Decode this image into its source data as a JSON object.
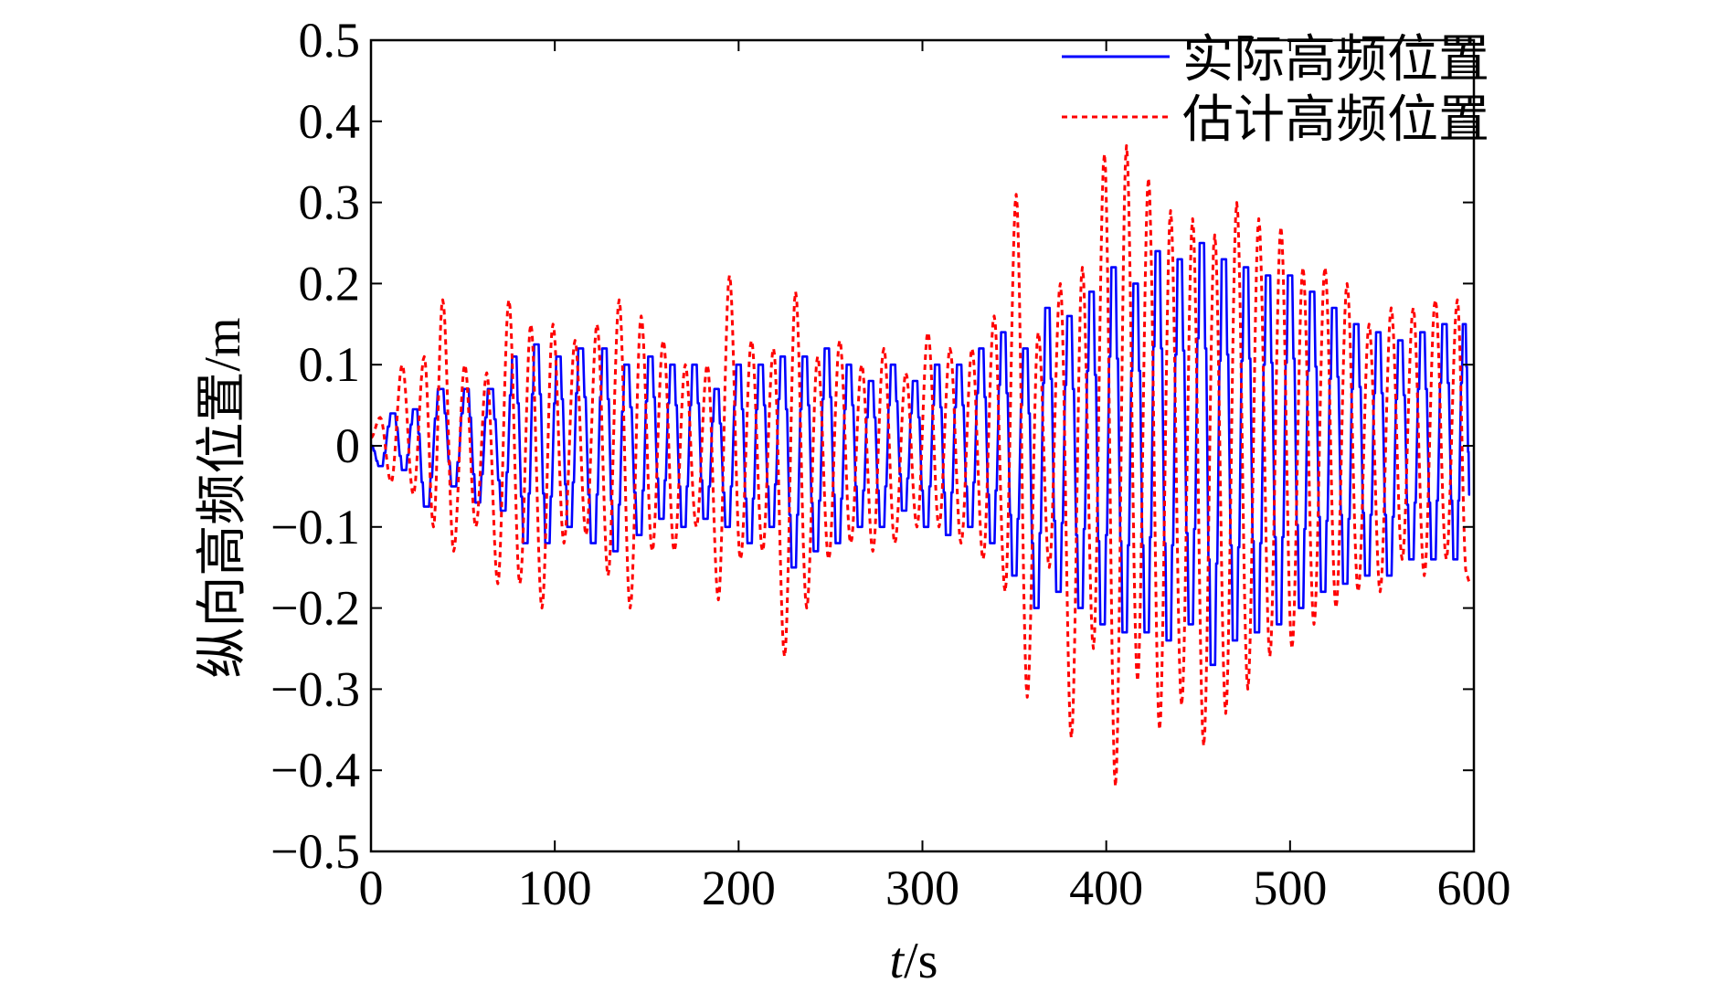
{
  "chart_data": {
    "type": "line",
    "title": "",
    "xlabel_italic": "t",
    "xlabel_unit": "/s",
    "ylabel": "纵向高频位置/m",
    "xlim": [
      0,
      600
    ],
    "ylim": [
      -0.5,
      0.5
    ],
    "xticks": [
      0,
      100,
      200,
      300,
      400,
      500,
      600
    ],
    "xtick_labels": [
      "0",
      "100",
      "200",
      "300",
      "400",
      "500",
      "600"
    ],
    "yticks": [
      0.5,
      0.4,
      0.3,
      0.2,
      0.1,
      0,
      -0.1,
      -0.2,
      -0.3,
      -0.4,
      -0.5
    ],
    "ytick_labels": [
      "0.5",
      "0.4",
      "0.3",
      "0.2",
      "0.1",
      "0",
      "−0.1",
      "−0.2",
      "−0.3",
      "−0.4",
      "−0.5"
    ],
    "legend_position": "top-right",
    "series": [
      {
        "name": "实际高频位置",
        "color": "#0000ff",
        "style": "solid",
        "peaks": [
          [
            0,
            0
          ],
          [
            5,
            -0.025
          ],
          [
            12,
            0.04
          ],
          [
            18,
            -0.03
          ],
          [
            24,
            0.045
          ],
          [
            30,
            -0.075
          ],
          [
            38,
            0.07
          ],
          [
            45,
            -0.05
          ],
          [
            52,
            0.07
          ],
          [
            58,
            -0.07
          ],
          [
            65,
            0.07
          ],
          [
            72,
            -0.08
          ],
          [
            78,
            0.11
          ],
          [
            84,
            -0.12
          ],
          [
            90,
            0.125
          ],
          [
            96,
            -0.12
          ],
          [
            102,
            0.11
          ],
          [
            108,
            -0.1
          ],
          [
            114,
            0.12
          ],
          [
            121,
            -0.12
          ],
          [
            127,
            0.12
          ],
          [
            133,
            -0.13
          ],
          [
            139,
            0.1
          ],
          [
            146,
            -0.11
          ],
          [
            152,
            0.11
          ],
          [
            158,
            -0.09
          ],
          [
            164,
            0.1
          ],
          [
            170,
            -0.1
          ],
          [
            176,
            0.1
          ],
          [
            182,
            -0.09
          ],
          [
            188,
            0.07
          ],
          [
            194,
            -0.1
          ],
          [
            200,
            0.1
          ],
          [
            206,
            -0.12
          ],
          [
            212,
            0.1
          ],
          [
            218,
            -0.1
          ],
          [
            224,
            0.11
          ],
          [
            230,
            -0.15
          ],
          [
            236,
            0.11
          ],
          [
            242,
            -0.13
          ],
          [
            248,
            0.12
          ],
          [
            254,
            -0.12
          ],
          [
            260,
            0.1
          ],
          [
            266,
            -0.1
          ],
          [
            272,
            0.08
          ],
          [
            278,
            -0.1
          ],
          [
            284,
            0.1
          ],
          [
            290,
            -0.08
          ],
          [
            296,
            0.08
          ],
          [
            302,
            -0.1
          ],
          [
            308,
            0.1
          ],
          [
            314,
            -0.11
          ],
          [
            320,
            0.1
          ],
          [
            326,
            -0.1
          ],
          [
            332,
            0.12
          ],
          [
            338,
            -0.12
          ],
          [
            344,
            0.14
          ],
          [
            350,
            -0.16
          ],
          [
            356,
            0.12
          ],
          [
            362,
            -0.2
          ],
          [
            368,
            0.17
          ],
          [
            374,
            -0.18
          ],
          [
            380,
            0.16
          ],
          [
            386,
            -0.2
          ],
          [
            392,
            0.19
          ],
          [
            398,
            -0.22
          ],
          [
            404,
            0.22
          ],
          [
            410,
            -0.23
          ],
          [
            416,
            0.2
          ],
          [
            422,
            -0.23
          ],
          [
            428,
            0.24
          ],
          [
            434,
            -0.24
          ],
          [
            440,
            0.23
          ],
          [
            446,
            -0.22
          ],
          [
            452,
            0.25
          ],
          [
            458,
            -0.27
          ],
          [
            464,
            0.23
          ],
          [
            470,
            -0.24
          ],
          [
            476,
            0.22
          ],
          [
            482,
            -0.23
          ],
          [
            488,
            0.21
          ],
          [
            494,
            -0.22
          ],
          [
            500,
            0.21
          ],
          [
            506,
            -0.2
          ],
          [
            512,
            0.19
          ],
          [
            518,
            -0.18
          ],
          [
            524,
            0.17
          ],
          [
            530,
            -0.17
          ],
          [
            536,
            0.15
          ],
          [
            542,
            -0.16
          ],
          [
            548,
            0.14
          ],
          [
            554,
            -0.16
          ],
          [
            560,
            0.13
          ],
          [
            566,
            -0.14
          ],
          [
            572,
            0.14
          ],
          [
            578,
            -0.14
          ],
          [
            584,
            0.15
          ],
          [
            590,
            -0.14
          ],
          [
            595,
            0.15
          ],
          [
            598,
            -0.06
          ]
        ]
      },
      {
        "name": "估计高频位置",
        "color": "#ff0000",
        "style": "dashed",
        "peaks": [
          [
            0,
            0.01
          ],
          [
            5,
            0.035
          ],
          [
            11,
            -0.045
          ],
          [
            17,
            0.1
          ],
          [
            23,
            -0.06
          ],
          [
            29,
            0.11
          ],
          [
            34,
            -0.1
          ],
          [
            39,
            0.18
          ],
          [
            45,
            -0.13
          ],
          [
            51,
            0.1
          ],
          [
            57,
            -0.1
          ],
          [
            63,
            0.09
          ],
          [
            69,
            -0.17
          ],
          [
            75,
            0.18
          ],
          [
            81,
            -0.17
          ],
          [
            87,
            0.15
          ],
          [
            93,
            -0.2
          ],
          [
            99,
            0.15
          ],
          [
            105,
            -0.12
          ],
          [
            111,
            0.13
          ],
          [
            117,
            -0.11
          ],
          [
            123,
            0.15
          ],
          [
            129,
            -0.16
          ],
          [
            135,
            0.18
          ],
          [
            141,
            -0.2
          ],
          [
            147,
            0.16
          ],
          [
            153,
            -0.13
          ],
          [
            159,
            0.13
          ],
          [
            165,
            -0.13
          ],
          [
            171,
            0.1
          ],
          [
            177,
            -0.1
          ],
          [
            183,
            0.1
          ],
          [
            189,
            -0.19
          ],
          [
            195,
            0.21
          ],
          [
            201,
            -0.14
          ],
          [
            207,
            0.13
          ],
          [
            213,
            -0.13
          ],
          [
            219,
            0.12
          ],
          [
            225,
            -0.26
          ],
          [
            231,
            0.19
          ],
          [
            237,
            -0.2
          ],
          [
            243,
            0.11
          ],
          [
            249,
            -0.14
          ],
          [
            255,
            0.13
          ],
          [
            261,
            -0.12
          ],
          [
            267,
            0.1
          ],
          [
            273,
            -0.13
          ],
          [
            279,
            0.12
          ],
          [
            285,
            -0.12
          ],
          [
            291,
            0.09
          ],
          [
            297,
            -0.1
          ],
          [
            303,
            0.14
          ],
          [
            309,
            -0.1
          ],
          [
            315,
            0.12
          ],
          [
            321,
            -0.12
          ],
          [
            327,
            0.12
          ],
          [
            333,
            -0.14
          ],
          [
            339,
            0.16
          ],
          [
            345,
            -0.18
          ],
          [
            351,
            0.31
          ],
          [
            357,
            -0.31
          ],
          [
            363,
            0.14
          ],
          [
            369,
            -0.15
          ],
          [
            375,
            0.2
          ],
          [
            381,
            -0.36
          ],
          [
            387,
            0.22
          ],
          [
            393,
            -0.25
          ],
          [
            399,
            0.36
          ],
          [
            405,
            -0.42
          ],
          [
            411,
            0.37
          ],
          [
            417,
            -0.29
          ],
          [
            423,
            0.33
          ],
          [
            429,
            -0.35
          ],
          [
            435,
            0.29
          ],
          [
            441,
            -0.32
          ],
          [
            447,
            0.28
          ],
          [
            453,
            -0.37
          ],
          [
            459,
            0.26
          ],
          [
            465,
            -0.33
          ],
          [
            471,
            0.3
          ],
          [
            477,
            -0.3
          ],
          [
            483,
            0.28
          ],
          [
            489,
            -0.26
          ],
          [
            495,
            0.27
          ],
          [
            501,
            -0.25
          ],
          [
            507,
            0.22
          ],
          [
            513,
            -0.22
          ],
          [
            519,
            0.22
          ],
          [
            525,
            -0.2
          ],
          [
            531,
            0.2
          ],
          [
            537,
            -0.18
          ],
          [
            543,
            0.15
          ],
          [
            549,
            -0.18
          ],
          [
            555,
            0.17
          ],
          [
            561,
            -0.14
          ],
          [
            567,
            0.17
          ],
          [
            573,
            -0.16
          ],
          [
            579,
            0.18
          ],
          [
            585,
            -0.14
          ],
          [
            591,
            0.18
          ],
          [
            596,
            -0.16
          ],
          [
            598,
            -0.17
          ]
        ]
      }
    ]
  }
}
